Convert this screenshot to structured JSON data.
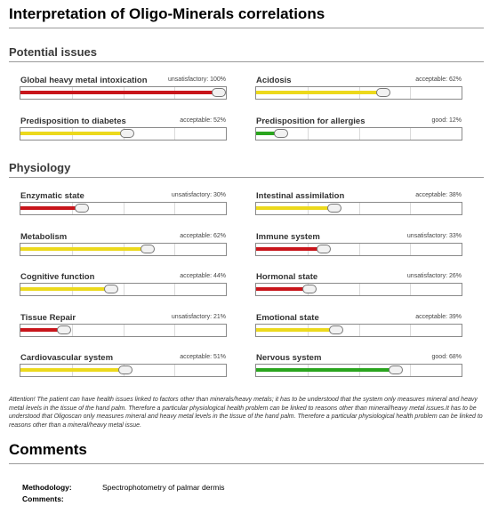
{
  "title": "Interpretation of Oligo-Minerals correlations",
  "colors": {
    "red": "#c8151b",
    "yellow": "#ecd91c",
    "green": "#2aa51e"
  },
  "sections": [
    {
      "title": "Potential issues",
      "items": [
        {
          "label": "Global heavy metal intoxication",
          "status": "unsatisfactory: 100%",
          "value": 100,
          "color": "red"
        },
        {
          "label": "Acidosis",
          "status": "acceptable: 62%",
          "value": 62,
          "color": "yellow"
        },
        {
          "label": "Predisposition to diabetes",
          "status": "acceptable: 52%",
          "value": 52,
          "color": "yellow"
        },
        {
          "label": "Predisposition for allergies",
          "status": "good: 12%",
          "value": 12,
          "color": "green"
        }
      ]
    },
    {
      "title": "Physiology",
      "items": [
        {
          "label": "Enzymatic state",
          "status": "unsatisfactory: 30%",
          "value": 30,
          "color": "red"
        },
        {
          "label": "Intestinal assimilation",
          "status": "acceptable: 38%",
          "value": 38,
          "color": "yellow"
        },
        {
          "label": "Metabolism",
          "status": "acceptable: 62%",
          "value": 62,
          "color": "yellow"
        },
        {
          "label": "Immune system",
          "status": "unsatisfactory: 33%",
          "value": 33,
          "color": "red"
        },
        {
          "label": "Cognitive function",
          "status": "acceptable: 44%",
          "value": 44,
          "color": "yellow"
        },
        {
          "label": "Hormonal state",
          "status": "unsatisfactory: 26%",
          "value": 26,
          "color": "red"
        },
        {
          "label": "Tissue Repair",
          "status": "unsatisfactory: 21%",
          "value": 21,
          "color": "red"
        },
        {
          "label": "Emotional state",
          "status": "acceptable: 39%",
          "value": 39,
          "color": "yellow"
        },
        {
          "label": "Cardiovascular system",
          "status": "acceptable: 51%",
          "value": 51,
          "color": "yellow"
        },
        {
          "label": "Nervous system",
          "status": "good: 68%",
          "value": 68,
          "color": "green"
        }
      ]
    }
  ],
  "note": "Attention! The patient can have health issues linked to factors other than minerals/heavy metals; it has to be understood that the system only measures mineral and heavy metal levels in the tissue of the hand palm. Therefore a particular physiological health problem can be linked to reasons other than mineral/heavy metal issues.It has to be understood that Oligoscan only measures mineral and heavy metal  levels in the tissue of the hand palm. Therefore a particular physiological health problem can be linked to reasons other than a mineral/heavy metal issue.",
  "comments": {
    "title": "Comments",
    "methodology_label": "Methodology:",
    "methodology_value": "Spectrophotometry of palmar dermis",
    "comments_label": "Comments:"
  }
}
